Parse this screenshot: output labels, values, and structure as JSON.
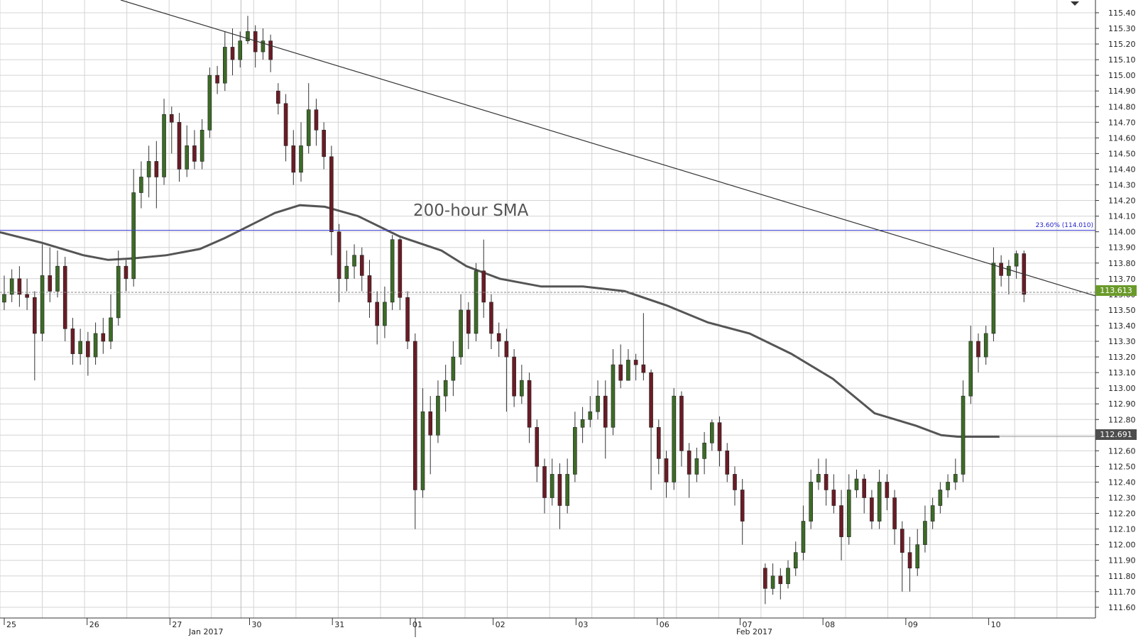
{
  "chart_data": {
    "type": "candlestick",
    "annotation_label": "200-hour SMA",
    "fib_label": "23.60% (114.010)",
    "current_price_label": "113.613",
    "sma_price_label": "112.691",
    "ylim": [
      111.55,
      115.45
    ],
    "y_ticks": [
      "115.40",
      "115.30",
      "115.20",
      "115.10",
      "115.00",
      "114.90",
      "114.80",
      "114.70",
      "114.60",
      "114.50",
      "114.40",
      "114.30",
      "114.20",
      "114.10",
      "114.00",
      "113.90",
      "113.80",
      "113.70",
      "113.60",
      "113.50",
      "113.40",
      "113.30",
      "113.20",
      "113.10",
      "113.00",
      "112.90",
      "112.80",
      "112.70",
      "112.60",
      "112.50",
      "112.40",
      "112.30",
      "112.20",
      "112.10",
      "112.00",
      "111.90",
      "111.80",
      "111.70",
      "111.60"
    ],
    "day_labels": [
      "25",
      "26",
      "27",
      "30",
      "31",
      "01",
      "02",
      "03",
      "06",
      "07",
      "08",
      "09",
      "10"
    ],
    "month_labels": [
      "Jan 2017",
      "Feb 2017"
    ],
    "levels": {
      "fib": 114.01,
      "current": 113.613,
      "sma_end": 112.691
    },
    "trendline": {
      "start": [
        0,
        115.69
      ],
      "end": [
        12.3,
        113.59
      ]
    },
    "sma": [
      [
        -0.1,
        114.01
      ],
      [
        0.5,
        113.93
      ],
      [
        1.0,
        113.85
      ],
      [
        1.3,
        113.82
      ],
      [
        1.6,
        113.83
      ],
      [
        2.0,
        113.85
      ],
      [
        2.4,
        113.89
      ],
      [
        2.7,
        113.96
      ],
      [
        3.0,
        114.04
      ],
      [
        3.3,
        114.12
      ],
      [
        3.6,
        114.17
      ],
      [
        3.9,
        114.16
      ],
      [
        4.3,
        114.1
      ],
      [
        4.8,
        113.97
      ],
      [
        5.3,
        113.88
      ],
      [
        5.6,
        113.78
      ],
      [
        6.0,
        113.7
      ],
      [
        6.5,
        113.65
      ],
      [
        7.0,
        113.65
      ],
      [
        7.5,
        113.62
      ],
      [
        8.0,
        113.53
      ],
      [
        8.5,
        113.42
      ],
      [
        9.0,
        113.35
      ],
      [
        9.5,
        113.22
      ],
      [
        10.0,
        113.06
      ],
      [
        10.5,
        112.84
      ],
      [
        11.0,
        112.76
      ],
      [
        11.3,
        112.7
      ],
      [
        11.5,
        112.69
      ],
      [
        12.0,
        112.69
      ]
    ],
    "candles": [
      [
        0.0,
        113.55,
        113.6,
        113.72,
        113.5
      ],
      [
        0.1,
        113.6,
        113.7,
        113.76,
        113.55
      ],
      [
        0.2,
        113.7,
        113.6,
        113.78,
        113.52
      ],
      [
        0.3,
        113.6,
        113.58,
        113.7,
        113.5
      ],
      [
        0.4,
        113.58,
        113.35,
        113.62,
        113.05
      ],
      [
        0.5,
        113.35,
        113.72,
        113.92,
        113.3
      ],
      [
        0.6,
        113.72,
        113.62,
        113.9,
        113.55
      ],
      [
        0.7,
        113.62,
        113.78,
        113.88,
        113.58
      ],
      [
        0.8,
        113.78,
        113.38,
        113.84,
        113.3
      ],
      [
        0.9,
        113.38,
        113.22,
        113.45,
        113.15
      ],
      [
        1.0,
        113.22,
        113.3,
        113.38,
        113.15
      ],
      [
        1.1,
        113.3,
        113.2,
        113.36,
        113.08
      ],
      [
        1.2,
        113.2,
        113.35,
        113.42,
        113.15
      ],
      [
        1.3,
        113.35,
        113.3,
        113.45,
        113.22
      ],
      [
        1.4,
        113.3,
        113.45,
        113.6,
        113.25
      ],
      [
        1.5,
        113.45,
        113.78,
        113.88,
        113.4
      ],
      [
        1.6,
        113.78,
        113.7,
        113.82,
        113.62
      ],
      [
        1.7,
        113.7,
        114.25,
        114.4,
        113.65
      ],
      [
        1.8,
        114.25,
        114.35,
        114.45,
        114.15
      ],
      [
        1.9,
        114.35,
        114.45,
        114.55,
        114.22
      ],
      [
        2.0,
        114.45,
        114.35,
        114.58,
        114.15
      ],
      [
        2.1,
        114.35,
        114.75,
        114.85,
        114.3
      ],
      [
        2.2,
        114.75,
        114.7,
        114.8,
        114.5
      ],
      [
        2.3,
        114.7,
        114.4,
        114.76,
        114.32
      ],
      [
        2.4,
        114.4,
        114.55,
        114.68,
        114.35
      ],
      [
        2.5,
        114.55,
        114.45,
        114.65,
        114.4
      ],
      [
        2.6,
        114.45,
        114.65,
        114.72,
        114.4
      ],
      [
        2.7,
        114.65,
        115.0,
        115.05,
        114.6
      ],
      [
        2.8,
        115.0,
        114.95,
        115.06,
        114.88
      ],
      [
        2.9,
        114.95,
        115.18,
        115.28,
        114.9
      ],
      [
        3.0,
        115.18,
        115.1,
        115.3,
        115.0
      ],
      [
        3.1,
        115.1,
        115.22,
        115.28,
        115.05
      ],
      [
        3.2,
        115.22,
        115.28,
        115.38,
        115.2
      ],
      [
        3.3,
        115.28,
        115.15,
        115.32,
        115.05
      ],
      [
        3.4,
        115.15,
        115.22,
        115.3,
        115.1
      ],
      [
        3.5,
        115.22,
        115.1,
        115.26,
        115.02
      ],
      [
        3.6,
        114.9,
        114.82,
        114.95,
        114.75
      ],
      [
        3.7,
        114.82,
        114.55,
        114.88,
        114.45
      ],
      [
        3.8,
        114.55,
        114.38,
        114.65,
        114.3
      ],
      [
        3.9,
        114.38,
        114.55,
        114.7,
        114.32
      ],
      [
        4.0,
        114.55,
        114.78,
        114.95,
        114.5
      ],
      [
        4.1,
        114.78,
        114.65,
        114.85,
        114.55
      ],
      [
        4.2,
        114.65,
        114.48,
        114.7,
        114.4
      ],
      [
        4.3,
        114.48,
        114.0,
        114.55,
        113.85
      ],
      [
        4.4,
        114.0,
        113.7,
        114.05,
        113.55
      ],
      [
        4.5,
        113.7,
        113.78,
        113.88,
        113.62
      ],
      [
        4.6,
        113.78,
        113.85,
        113.92,
        113.7
      ],
      [
        4.7,
        113.85,
        113.72,
        113.9,
        113.62
      ],
      [
        4.8,
        113.72,
        113.55,
        113.82,
        113.45
      ],
      [
        4.9,
        113.55,
        113.4,
        113.62,
        113.28
      ],
      [
        5.0,
        113.4,
        113.55,
        113.65,
        113.32
      ],
      [
        5.1,
        113.55,
        113.95,
        113.98,
        113.5
      ],
      [
        5.2,
        113.95,
        113.58,
        113.96,
        113.5
      ],
      [
        5.3,
        113.58,
        113.3,
        113.62,
        113.25
      ],
      [
        5.4,
        113.3,
        112.35,
        113.35,
        112.1
      ],
      [
        5.5,
        112.35,
        112.85,
        113.0,
        112.3
      ],
      [
        5.6,
        112.85,
        112.7,
        112.95,
        112.45
      ],
      [
        5.7,
        112.7,
        112.95,
        113.05,
        112.65
      ],
      [
        5.8,
        112.95,
        113.05,
        113.15,
        112.85
      ],
      [
        5.9,
        113.05,
        113.2,
        113.3,
        112.95
      ],
      [
        6.0,
        113.2,
        113.5,
        113.6,
        113.15
      ],
      [
        6.1,
        113.5,
        113.35,
        113.55,
        113.25
      ],
      [
        6.2,
        113.35,
        113.75,
        113.8,
        113.3
      ],
      [
        6.3,
        113.75,
        113.55,
        113.95,
        113.45
      ],
      [
        6.4,
        113.55,
        113.35,
        113.6,
        113.25
      ],
      [
        6.5,
        113.35,
        113.3,
        113.42,
        113.2
      ],
      [
        6.6,
        113.3,
        113.2,
        113.38,
        112.85
      ],
      [
        6.7,
        113.2,
        112.95,
        113.25,
        112.88
      ],
      [
        6.8,
        112.95,
        113.05,
        113.15,
        112.9
      ],
      [
        6.9,
        113.05,
        112.75,
        113.1,
        112.65
      ],
      [
        7.0,
        112.75,
        112.5,
        112.8,
        112.4
      ],
      [
        7.1,
        112.5,
        112.3,
        112.55,
        112.2
      ],
      [
        7.2,
        112.3,
        112.45,
        112.55,
        112.25
      ],
      [
        7.3,
        112.45,
        112.25,
        112.52,
        112.1
      ],
      [
        7.4,
        112.25,
        112.45,
        112.55,
        112.2
      ],
      [
        7.5,
        112.45,
        112.75,
        112.85,
        112.4
      ],
      [
        7.6,
        112.75,
        112.8,
        112.88,
        112.65
      ],
      [
        7.7,
        112.8,
        112.85,
        112.95,
        112.75
      ],
      [
        7.8,
        112.85,
        112.95,
        113.05,
        112.8
      ],
      [
        7.9,
        112.95,
        112.75,
        113.05,
        112.55
      ],
      [
        8.0,
        112.75,
        113.15,
        113.25,
        112.7
      ],
      [
        8.1,
        113.15,
        113.05,
        113.28,
        113.0
      ],
      [
        8.2,
        113.05,
        113.18,
        113.25,
        113.05
      ],
      [
        8.3,
        113.18,
        113.15,
        113.22,
        113.05
      ],
      [
        8.4,
        113.15,
        113.1,
        113.48,
        113.05
      ],
      [
        8.5,
        113.1,
        112.75,
        113.12,
        112.35
      ],
      [
        8.6,
        112.75,
        112.55,
        112.8,
        112.45
      ],
      [
        8.7,
        112.55,
        112.4,
        112.6,
        112.3
      ],
      [
        8.8,
        112.4,
        112.95,
        113.0,
        112.35
      ],
      [
        8.9,
        112.95,
        112.6,
        112.98,
        112.5
      ],
      [
        9.0,
        112.6,
        112.45,
        112.65,
        112.3
      ],
      [
        9.1,
        112.45,
        112.55,
        112.62,
        112.4
      ],
      [
        9.2,
        112.55,
        112.65,
        112.72,
        112.45
      ],
      [
        9.3,
        112.65,
        112.78,
        112.8,
        112.6
      ],
      [
        9.4,
        112.78,
        112.6,
        112.82,
        112.5
      ],
      [
        9.5,
        112.6,
        112.45,
        112.65,
        112.4
      ],
      [
        9.6,
        112.45,
        112.35,
        112.5,
        112.25
      ],
      [
        9.7,
        112.35,
        112.15,
        112.42,
        112.0
      ],
      [
        10.0,
        111.85,
        111.72,
        111.88,
        111.62
      ],
      [
        10.1,
        111.72,
        111.8,
        111.88,
        111.68
      ],
      [
        10.2,
        111.8,
        111.75,
        111.85,
        111.65
      ],
      [
        10.3,
        111.75,
        111.85,
        111.9,
        111.72
      ],
      [
        10.4,
        111.85,
        111.95,
        112.02,
        111.8
      ],
      [
        10.5,
        111.95,
        112.15,
        112.25,
        111.9
      ],
      [
        10.6,
        112.15,
        112.4,
        112.48,
        112.1
      ],
      [
        10.7,
        112.4,
        112.45,
        112.55,
        112.35
      ],
      [
        10.8,
        112.45,
        112.35,
        112.55,
        112.25
      ],
      [
        10.9,
        112.35,
        112.25,
        112.45,
        112.2
      ],
      [
        11.0,
        112.25,
        112.05,
        112.35,
        111.9
      ],
      [
        11.1,
        112.05,
        112.35,
        112.45,
        112.0
      ],
      [
        11.2,
        112.35,
        112.42,
        112.48,
        112.3
      ],
      [
        11.3,
        112.42,
        112.3,
        112.45,
        112.2
      ],
      [
        11.4,
        112.3,
        112.15,
        112.35,
        112.1
      ],
      [
        11.5,
        112.15,
        112.4,
        112.48,
        112.1
      ],
      [
        11.6,
        112.4,
        112.3,
        112.45,
        112.22
      ],
      [
        11.7,
        112.3,
        112.1,
        112.35,
        112.0
      ],
      [
        11.8,
        112.1,
        111.95,
        112.15,
        111.7
      ],
      [
        11.9,
        111.95,
        111.85,
        112.05,
        111.7
      ],
      [
        12.0,
        111.85,
        112.0,
        112.1,
        111.8
      ],
      [
        12.1,
        112.0,
        112.15,
        112.25,
        111.95
      ],
      [
        12.2,
        112.15,
        112.25,
        112.3,
        112.1
      ],
      [
        12.3,
        112.25,
        112.35,
        112.4,
        112.2
      ],
      [
        12.4,
        112.35,
        112.4,
        112.45,
        112.3
      ],
      [
        12.5,
        112.4,
        112.45,
        112.55,
        112.35
      ],
      [
        12.6,
        112.45,
        112.95,
        113.05,
        112.4
      ],
      [
        12.7,
        112.95,
        113.3,
        113.4,
        112.9
      ],
      [
        12.8,
        113.3,
        113.2,
        113.35,
        113.1
      ],
      [
        12.9,
        113.2,
        113.35,
        113.4,
        113.15
      ],
      [
        13.0,
        113.35,
        113.8,
        113.9,
        113.3
      ],
      [
        13.1,
        113.8,
        113.72,
        113.85,
        113.65
      ],
      [
        13.2,
        113.72,
        113.78,
        113.82,
        113.6
      ],
      [
        13.3,
        113.78,
        113.86,
        113.88,
        113.7
      ],
      [
        13.4,
        113.86,
        113.6,
        113.88,
        113.55
      ]
    ]
  }
}
